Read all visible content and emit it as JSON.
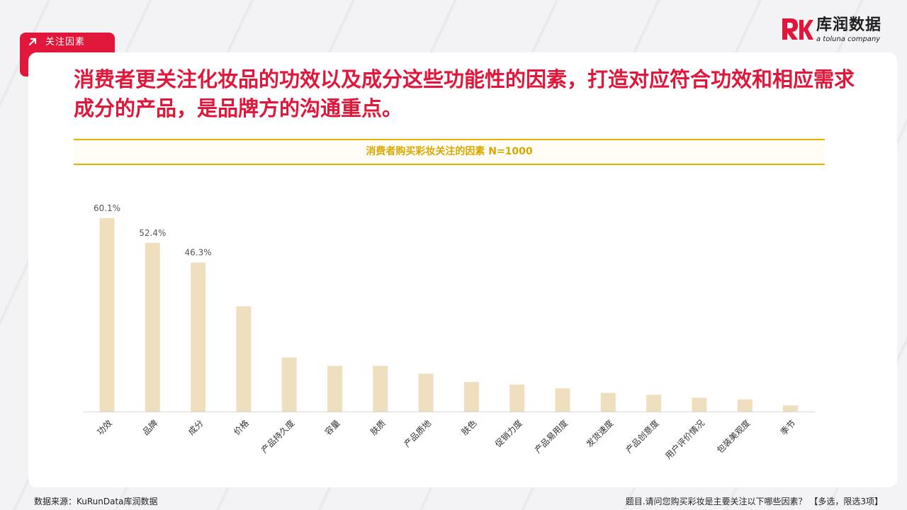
{
  "tag": {
    "label": "关注因素"
  },
  "brand": {
    "name_cn": "库润数据",
    "tagline": "a toluna company",
    "accent": "#e0173a"
  },
  "headline": "消费者更关注化妆品的功效以及成分这些功能性的因素，打造对应符合功效和相应需求成分的产品，是品牌方的沟通重点。",
  "footer": {
    "source": "数据来源：KuRunData库润数据",
    "question": "题目.请问您购买彩妆是主要关注以下哪些因素？ 【多选，限选3项】"
  },
  "chart_data": {
    "type": "bar",
    "title": "消费者购买彩妆关注的因素 N=1000",
    "categories": [
      "功效",
      "品牌",
      "成分",
      "价格",
      "产品持久度",
      "容量",
      "肤质",
      "产品质地",
      "肤色",
      "促销力度",
      "产品易用度",
      "发货速度",
      "产品创意度",
      "用户评价情况",
      "包装美观度",
      "季节"
    ],
    "values": [
      60.1,
      52.4,
      46.3,
      32.7,
      16.8,
      14.2,
      14.2,
      11.8,
      9.2,
      8.4,
      7.2,
      5.8,
      5.2,
      4.3,
      3.8,
      1.9
    ],
    "data_labels": [
      "60.1%",
      "52.4%",
      "46.3%",
      "",
      "",
      "",
      "",
      "",
      "",
      "",
      "",
      "",
      "",
      "",
      "",
      ""
    ],
    "ylim": [
      0,
      60.1
    ],
    "grid": false,
    "bar_color": "#f0dfbe",
    "axis_color": "#d8d8d8"
  }
}
